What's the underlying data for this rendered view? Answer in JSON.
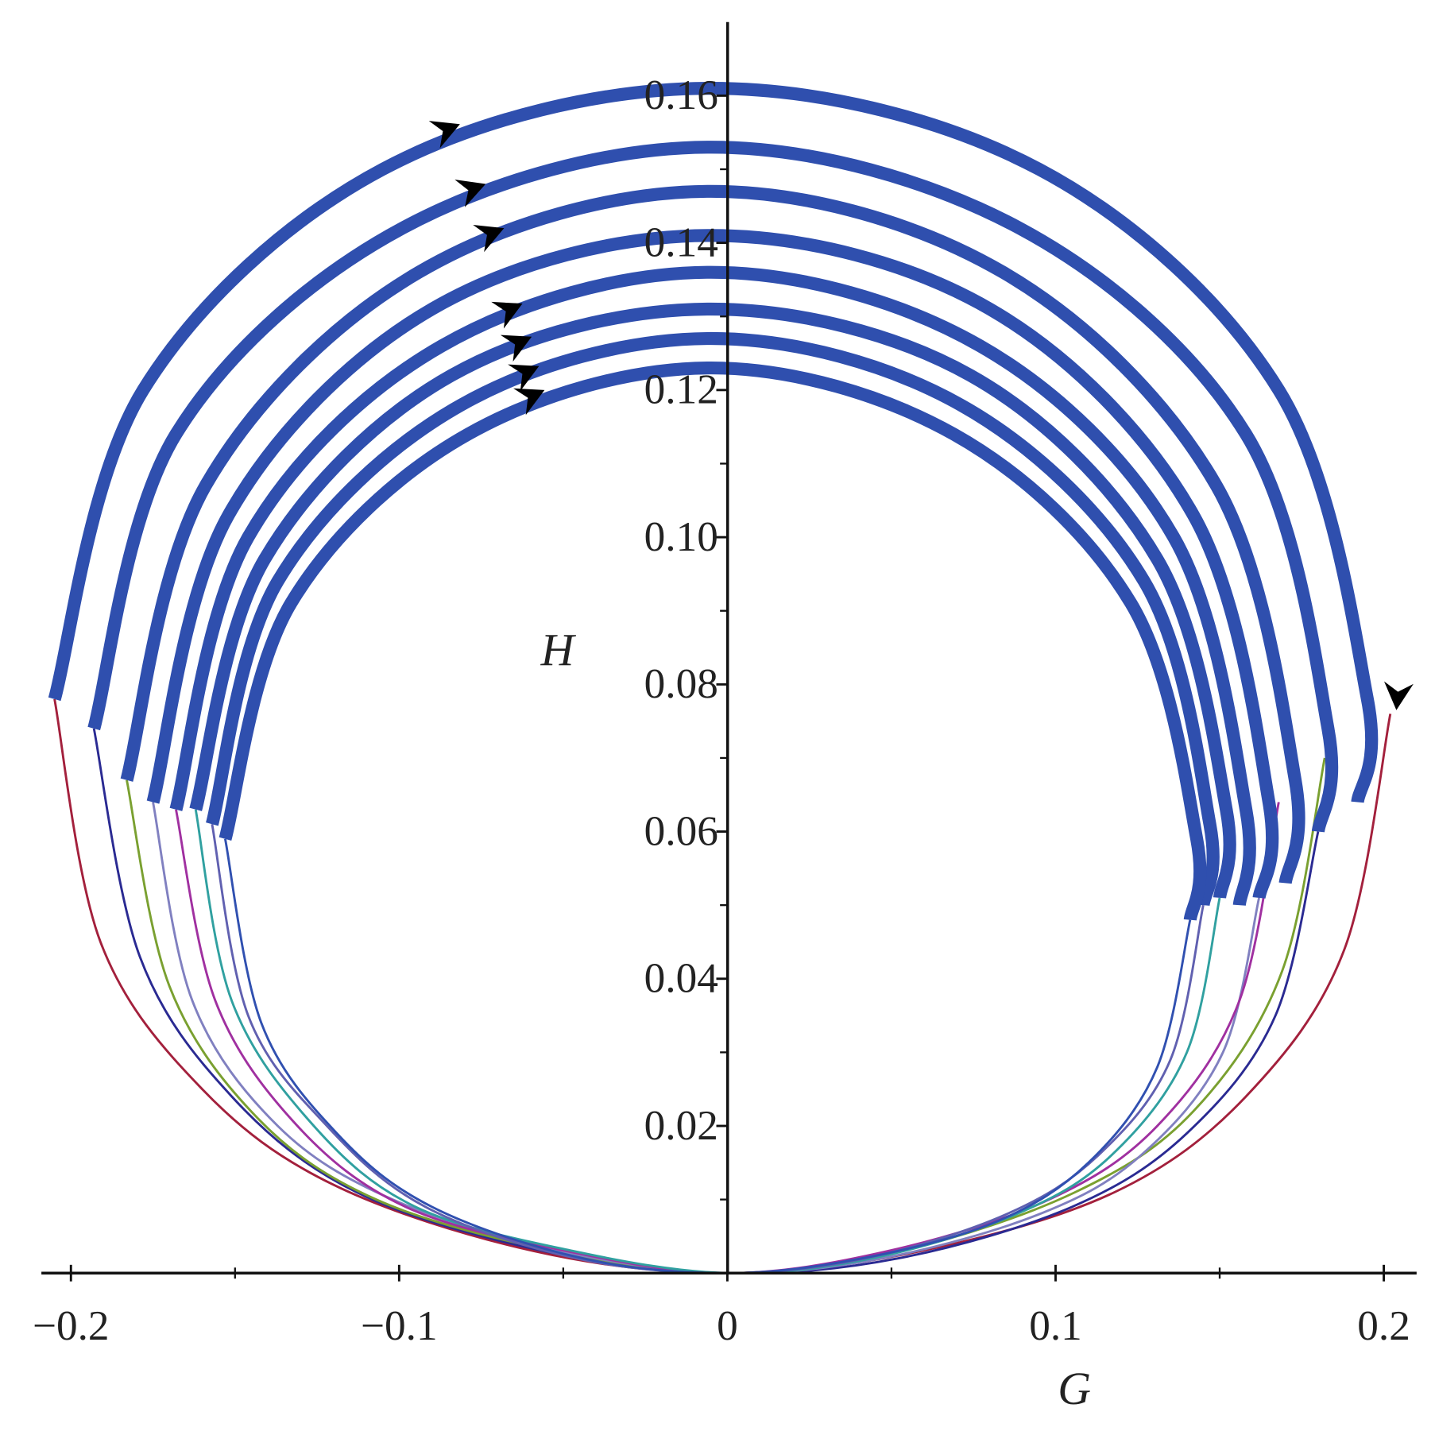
{
  "chart_data": {
    "type": "line",
    "x_label": "G",
    "y_label": "H",
    "xlim": [
      -0.209,
      0.21
    ],
    "ylim": [
      0,
      0.17
    ],
    "xticks": [
      {
        "value": -0.2,
        "label": "−0.2"
      },
      {
        "value": -0.1,
        "label": "−0.1"
      },
      0,
      0.1,
      0.2
    ],
    "xminorticks": [
      -0.15,
      -0.05,
      0.05,
      0.15
    ],
    "yticks": [
      0.02,
      0.04,
      0.06,
      0.08,
      {
        "value": 0.1,
        "label": "0.10"
      },
      0.12,
      0.14,
      0.16
    ],
    "yminorticks": [
      0.01,
      0.03,
      0.05,
      0.07,
      0.09,
      0.11,
      0.13,
      0.15
    ],
    "series": [
      {
        "color": "#a3203c",
        "linewidth": 2.5,
        "x": [
          0.202,
          0.188,
          0.158,
          0.118,
          0.059,
          0,
          -0.059,
          -0.12,
          -0.16,
          -0.191,
          -0.205
        ],
        "y": [
          0.076,
          0.044,
          0.024,
          0.011,
          0.003,
          0,
          0.003,
          0.012,
          0.025,
          0.045,
          0.078
        ]
      },
      {
        "color": "#2a2a92",
        "linewidth": 2.5,
        "x": [
          0.18,
          0.167,
          0.14,
          0.105,
          0.052,
          0,
          -0.056,
          -0.113,
          -0.151,
          -0.179,
          -0.193
        ],
        "y": [
          0.06,
          0.035,
          0.019,
          0.009,
          0.002,
          0,
          0.003,
          0.011,
          0.024,
          0.043,
          0.074
        ]
      },
      {
        "color": "#7aa030",
        "linewidth": 2.5,
        "x": [
          0.182,
          0.169,
          0.142,
          0.106,
          0.053,
          0,
          -0.053,
          -0.107,
          -0.143,
          -0.17,
          -0.183
        ],
        "y": [
          0.07,
          0.041,
          0.022,
          0.011,
          0.003,
          0,
          0.003,
          0.01,
          0.021,
          0.039,
          0.067
        ]
      },
      {
        "color": "#8080c0",
        "linewidth": 2.5,
        "x": [
          0.162,
          0.151,
          0.126,
          0.095,
          0.047,
          0,
          -0.051,
          -0.102,
          -0.137,
          -0.163,
          -0.175
        ],
        "y": [
          0.051,
          0.03,
          0.016,
          0.008,
          0.002,
          0,
          0.003,
          0.01,
          0.02,
          0.037,
          0.064
        ]
      },
      {
        "color": "#a030a0",
        "linewidth": 2.5,
        "x": [
          0.168,
          0.156,
          0.131,
          0.098,
          0.049,
          0,
          -0.049,
          -0.098,
          -0.131,
          -0.156,
          -0.168
        ],
        "y": [
          0.064,
          0.037,
          0.02,
          0.01,
          0.003,
          0,
          0.003,
          0.009,
          0.02,
          0.037,
          0.063
        ]
      },
      {
        "color": "#30a0a0",
        "linewidth": 2.5,
        "x": [
          0.15,
          0.14,
          0.117,
          0.088,
          0.044,
          0,
          -0.047,
          -0.095,
          -0.126,
          -0.151,
          -0.162
        ],
        "y": [
          0.051,
          0.03,
          0.016,
          0.008,
          0.002,
          0,
          0.003,
          0.009,
          0.02,
          0.037,
          0.063
        ]
      },
      {
        "color": "#6060b0",
        "linewidth": 2.5,
        "x": [
          0.145,
          0.135,
          0.113,
          0.085,
          0.042,
          0,
          -0.046,
          -0.092,
          -0.122,
          -0.146,
          -0.157
        ],
        "y": [
          0.05,
          0.029,
          0.016,
          0.008,
          0.002,
          0,
          0.002,
          0.009,
          0.02,
          0.035,
          0.061
        ]
      },
      {
        "color": "#3050b0",
        "linewidth": 2.5,
        "x": [
          0.141,
          0.131,
          0.11,
          0.082,
          0.041,
          0,
          -0.044,
          -0.09,
          -0.119,
          -0.142,
          -0.153
        ],
        "y": [
          0.048,
          0.028,
          0.015,
          0.007,
          0.002,
          0,
          0.002,
          0.009,
          0.019,
          0.034,
          0.059
        ]
      },
      {
        "color": "#2f4fae",
        "linewidth": 14,
        "x": [
          -0.205,
          -0.178,
          -0.105,
          -0.005,
          0.095,
          0.168,
          0.195,
          0.192
        ],
        "y": [
          0.078,
          0.12,
          0.15,
          0.161,
          0.15,
          0.12,
          0.078,
          0.064
        ]
      },
      {
        "color": "#2f4fae",
        "linewidth": 14,
        "x": [
          -0.193,
          -0.168,
          -0.099,
          -0.005,
          0.089,
          0.158,
          0.183,
          0.18
        ],
        "y": [
          0.074,
          0.114,
          0.142,
          0.153,
          0.142,
          0.114,
          0.074,
          0.06
        ]
      },
      {
        "color": "#2f4fae",
        "linewidth": 14,
        "x": [
          -0.183,
          -0.159,
          -0.094,
          -0.005,
          0.084,
          0.149,
          0.173,
          0.17
        ],
        "y": [
          0.067,
          0.107,
          0.136,
          0.147,
          0.136,
          0.107,
          0.067,
          0.053
        ]
      },
      {
        "color": "#2f4fae",
        "linewidth": 14,
        "x": [
          -0.175,
          -0.152,
          -0.09,
          -0.005,
          0.08,
          0.142,
          0.165,
          0.162
        ],
        "y": [
          0.064,
          0.103,
          0.131,
          0.141,
          0.131,
          0.103,
          0.064,
          0.051
        ]
      },
      {
        "color": "#2f4fae",
        "linewidth": 14,
        "x": [
          -0.168,
          -0.146,
          -0.087,
          -0.005,
          0.077,
          0.136,
          0.158,
          0.156
        ],
        "y": [
          0.063,
          0.1,
          0.126,
          0.136,
          0.126,
          0.1,
          0.063,
          0.05
        ]
      },
      {
        "color": "#2f4fae",
        "linewidth": 14,
        "x": [
          -0.162,
          -0.141,
          -0.084,
          -0.005,
          0.074,
          0.131,
          0.152,
          0.15
        ],
        "y": [
          0.063,
          0.097,
          0.122,
          0.131,
          0.122,
          0.097,
          0.063,
          0.051
        ]
      },
      {
        "color": "#2f4fae",
        "linewidth": 14,
        "x": [
          -0.157,
          -0.137,
          -0.081,
          -0.005,
          0.071,
          0.127,
          0.147,
          0.145
        ],
        "y": [
          0.061,
          0.094,
          0.118,
          0.127,
          0.118,
          0.094,
          0.061,
          0.05
        ]
      },
      {
        "color": "#2f4fae",
        "linewidth": 14,
        "x": [
          -0.153,
          -0.133,
          -0.079,
          -0.005,
          0.069,
          0.123,
          0.143,
          0.141
        ],
        "y": [
          0.059,
          0.091,
          0.114,
          0.123,
          0.114,
          0.091,
          0.059,
          0.048
        ]
      }
    ]
  }
}
